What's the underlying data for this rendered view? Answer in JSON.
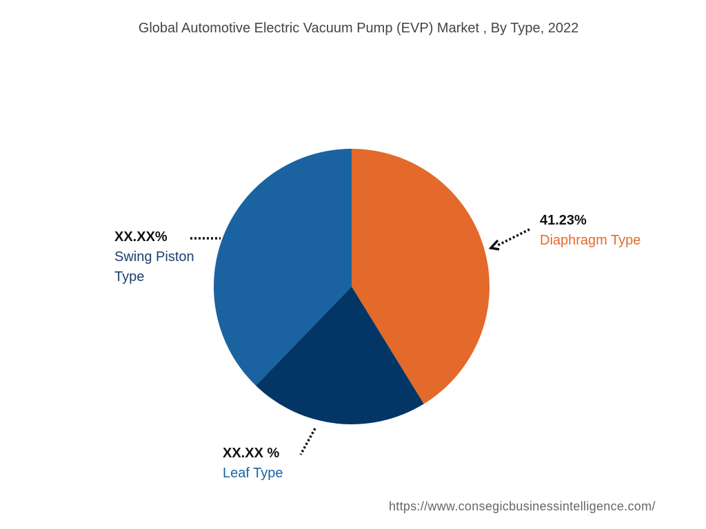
{
  "chart_data": {
    "type": "pie",
    "title": "Global Automotive Electric Vacuum Pump (EVP) Market , By Type, 2022",
    "slices": [
      {
        "name": "Diaphragm Type",
        "value": 41.23,
        "label": "41.23%",
        "color": "#E36A2A",
        "label_color": "#E36A2A"
      },
      {
        "name": "Leaf Type",
        "value": 21.0,
        "label": "XX.XX %",
        "color": "#033566",
        "label_color": "#1A63A0"
      },
      {
        "name": "Swing Piston Type",
        "value": 37.77,
        "label": "XX.XX%",
        "color": "#1A63A0",
        "label_color": "#1C3F6E"
      }
    ],
    "legend": "none"
  },
  "labels": {
    "swing_pct": "XX.XX%",
    "swing_name_1": "Swing Piston",
    "swing_name_2": "Type",
    "diaphragm_pct": "41.23%",
    "diaphragm_name": "Diaphragm Type",
    "leaf_pct": "XX.XX %",
    "leaf_name": "Leaf Type"
  },
  "footer": {
    "url": "https://www.consegicbusinessintelligence.com/"
  }
}
